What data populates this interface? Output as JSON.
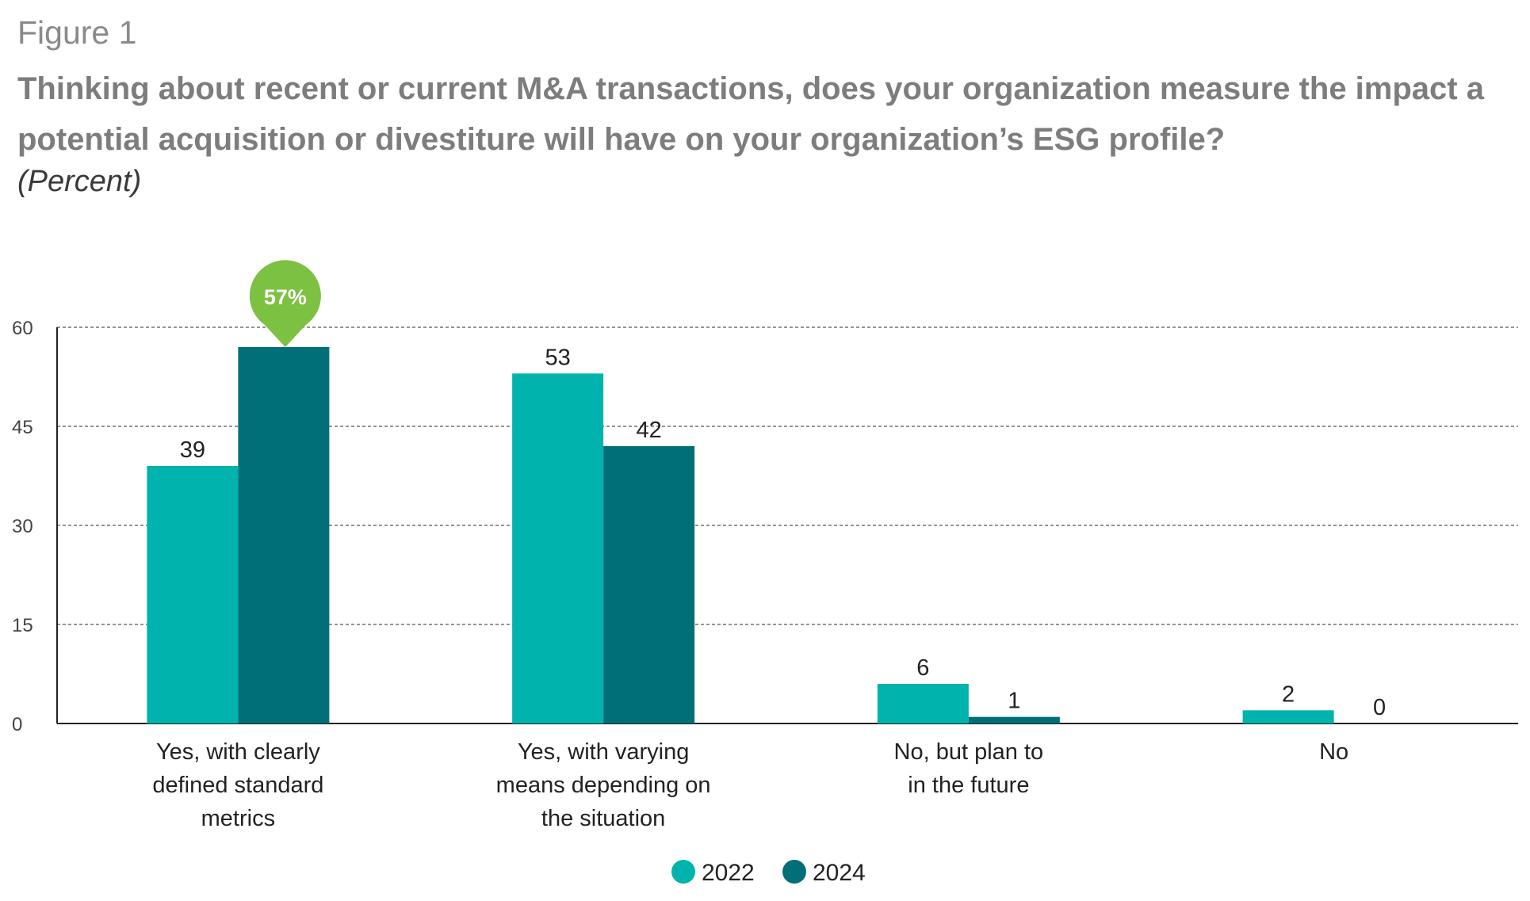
{
  "figure_label": "Figure 1",
  "chart_data": {
    "type": "bar",
    "title": "Thinking about recent or current M&A transactions, does your organization measure the impact a potential acquisition or divestiture will have on your organization’s ESG profile?",
    "subtitle": "(Percent)",
    "categories": [
      [
        "Yes, with clearly",
        "defined standard",
        "metrics"
      ],
      [
        "Yes, with varying",
        "means depending on",
        "the situation"
      ],
      [
        "No, but plan to",
        "in the future"
      ],
      [
        "No"
      ]
    ],
    "series": [
      {
        "name": "2022",
        "color": "#00b3ad",
        "values": [
          39,
          53,
          6,
          2
        ]
      },
      {
        "name": "2024",
        "color": "#006f78",
        "values": [
          57,
          42,
          1,
          0
        ]
      }
    ],
    "ylim": [
      0,
      60
    ],
    "yticks": [
      0,
      15,
      30,
      45,
      60
    ],
    "grid": true,
    "legend_position": "bottom-center",
    "callout": {
      "text": "57%",
      "color": "#7cc142",
      "series": 1,
      "category": 0
    }
  }
}
